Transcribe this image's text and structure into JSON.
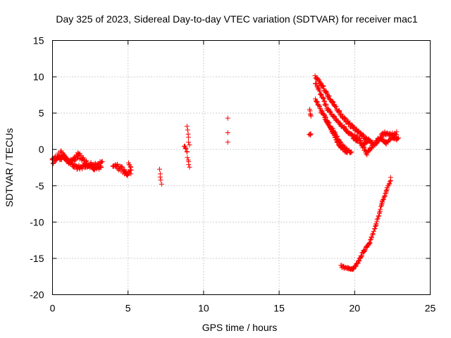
{
  "chart_data": {
    "type": "scatter",
    "title": "Day 325 of 2023, Sidereal Day-to-day VTEC variation (SDTVAR) for receiver mac1",
    "xlabel": "GPS time / hours",
    "ylabel": "SDTVAR / TECUs",
    "xlim": [
      0,
      25
    ],
    "ylim": [
      -20,
      15
    ],
    "xticks": [
      0,
      5,
      10,
      15,
      20,
      25
    ],
    "yticks": [
      -20,
      -15,
      -10,
      -5,
      0,
      5,
      10,
      15
    ],
    "grid": true,
    "marker": "+",
    "color": "#ff0000",
    "segments": [
      {
        "x": [
          0.0,
          0.3,
          0.6,
          0.9,
          1.2,
          1.5,
          1.8,
          2.1,
          2.4,
          2.7,
          3.0,
          3.3
        ],
        "y": [
          -1.6,
          -1.0,
          -0.5,
          -1.2,
          -1.8,
          -1.0,
          -0.8,
          -1.7,
          -2.1,
          -2.3,
          -2.2,
          -2.0
        ],
        "spread": 0.9
      },
      {
        "x": [
          0.0,
          0.4,
          0.8,
          1.2,
          1.6,
          2.0,
          2.4,
          2.8,
          3.2
        ],
        "y": [
          -1.3,
          -1.2,
          -1.0,
          -1.9,
          -2.5,
          -2.4,
          -2.2,
          -2.6,
          -2.4
        ],
        "spread": 0.6
      },
      {
        "x": [
          4.0,
          4.3,
          4.6,
          4.9,
          5.2
        ],
        "y": [
          -2.1,
          -2.3,
          -2.8,
          -3.4,
          -3.1
        ],
        "spread": 0.8
      },
      {
        "x": [
          5.05,
          5.2
        ],
        "y": [
          -1.8,
          -2.8
        ],
        "spread": 0.3
      },
      {
        "x": [
          7.1,
          7.2
        ],
        "y": [
          -2.8,
          -4.8
        ],
        "spread": 0.2
      },
      {
        "x": [
          8.7,
          8.9
        ],
        "y": [
          0.5,
          -0.3
        ],
        "spread": 0.4
      },
      {
        "x": [
          8.9,
          9.05
        ],
        "y": [
          3.3,
          0.5
        ],
        "spread": 0.3
      },
      {
        "x": [
          8.95,
          9.05
        ],
        "y": [
          -1.2,
          -2.4
        ],
        "spread": 0.3
      },
      {
        "x": [
          17.0,
          17.1
        ],
        "y": [
          2.0,
          2.1
        ],
        "spread": 0.2
      },
      {
        "x": [
          17.0,
          17.1
        ],
        "y": [
          5.4,
          4.6
        ],
        "spread": 0.3
      },
      {
        "x": [
          17.4,
          17.8,
          18.2,
          18.6,
          19.0,
          19.4,
          19.8,
          20.2,
          20.6,
          21.0
        ],
        "y": [
          10.0,
          8.9,
          7.6,
          6.3,
          5.1,
          4.0,
          3.2,
          2.5,
          1.7,
          1.2
        ],
        "spread": 0.5
      },
      {
        "x": [
          17.4,
          17.8,
          18.2,
          18.6,
          19.0,
          19.4,
          19.8,
          20.2
        ],
        "y": [
          9.2,
          7.5,
          5.6,
          4.5,
          3.6,
          2.8,
          1.9,
          1.1
        ],
        "spread": 0.4
      },
      {
        "x": [
          17.4,
          17.8,
          18.2,
          18.6,
          19.0,
          19.4,
          19.8
        ],
        "y": [
          6.8,
          5.2,
          3.8,
          2.5,
          1.0,
          0.0,
          -0.4
        ],
        "spread": 0.4
      },
      {
        "x": [
          18.0,
          18.5,
          19.0,
          19.5
        ],
        "y": [
          4.5,
          2.5,
          0.5,
          -0.5
        ],
        "spread": 0.3
      },
      {
        "x": [
          20.0,
          20.4,
          20.8,
          21.2,
          21.6,
          22.0,
          22.4,
          22.8
        ],
        "y": [
          2.0,
          1.0,
          -0.5,
          0.5,
          1.5,
          2.3,
          2.0,
          2.2
        ],
        "spread": 0.5
      },
      {
        "x": [
          20.5,
          20.9,
          21.3,
          21.7,
          22.1,
          22.5,
          22.9
        ],
        "y": [
          0.5,
          1.3,
          0.6,
          1.5,
          0.9,
          1.7,
          1.4
        ],
        "spread": 0.4
      },
      {
        "x": [
          19.1,
          19.5,
          19.9,
          20.2,
          20.6,
          21.0,
          21.4,
          21.8,
          22.1,
          22.4
        ],
        "y": [
          -16.1,
          -16.3,
          -16.5,
          -15.6,
          -14.0,
          -12.8,
          -10.5,
          -7.5,
          -5.7,
          -4.0
        ],
        "spread": 0.3
      }
    ],
    "points": [
      {
        "x": 11.6,
        "y": 4.3
      },
      {
        "x": 11.6,
        "y": 2.3
      },
      {
        "x": 11.6,
        "y": 1.0
      }
    ]
  }
}
